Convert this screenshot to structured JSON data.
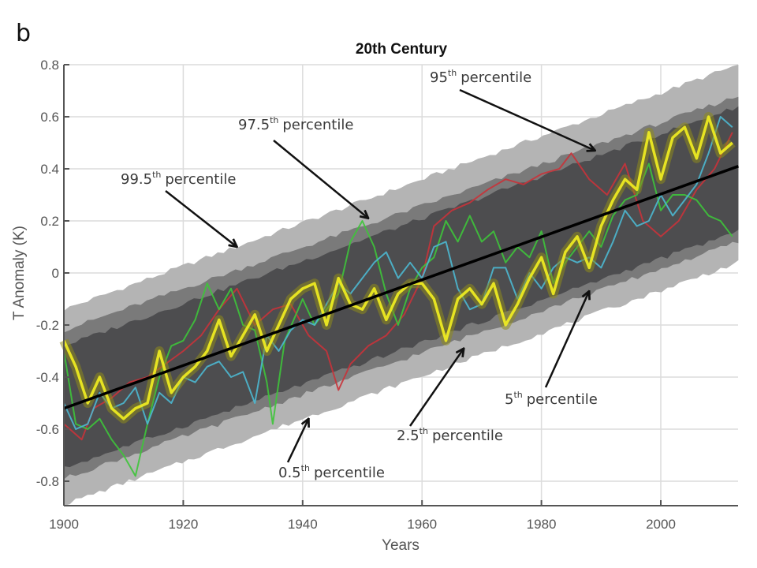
{
  "panel_label": "b",
  "chart_data": {
    "type": "area",
    "title": "20th Century",
    "xlabel": "Years",
    "ylabel": "T Anomaly (K)",
    "xlim": [
      1900,
      2013
    ],
    "ylim": [
      -0.9,
      0.8
    ],
    "grid": true,
    "xticks": [
      1900,
      1920,
      1940,
      1960,
      1980,
      2000
    ],
    "xtick_labels": [
      "1900",
      "1920",
      "1940",
      "1960",
      "1980",
      "2000"
    ],
    "yticks": [
      0.8,
      0.6,
      0.4,
      0.2,
      0,
      -0.2,
      -0.4,
      -0.6,
      -0.8
    ],
    "ytick_labels": [
      "0.8",
      "0.6",
      "0.4",
      "0.2",
      "0",
      "-0.2",
      "-0.4",
      "-0.6",
      "-0.8"
    ],
    "trend": {
      "name": "linear trend",
      "color": "#000000",
      "x": [
        1900,
        2013
      ],
      "y": [
        -0.52,
        0.41
      ]
    },
    "bands": [
      {
        "name": "0.5th-99.5th percentile",
        "color": "#b4b4b4",
        "x": [
          1900,
          2013
        ],
        "lower": [
          -0.89,
          0.04
        ],
        "upper": [
          -0.14,
          0.8
        ]
      },
      {
        "name": "2.5th-97.5th percentile",
        "color": "#7a7a7a",
        "x": [
          1900,
          2013
        ],
        "lower": [
          -0.79,
          0.12
        ],
        "upper": [
          -0.22,
          0.68
        ]
      },
      {
        "name": "5th-95th percentile",
        "color": "#4d4d4f",
        "x": [
          1900,
          2013
        ],
        "lower": [
          -0.75,
          0.16
        ],
        "upper": [
          -0.28,
          0.64
        ]
      }
    ],
    "series": [
      {
        "name": "red",
        "color": "#c8333a",
        "x": [
          1900,
          1903,
          1905,
          1908,
          1911,
          1914,
          1917,
          1920,
          1923,
          1926,
          1929,
          1932,
          1935,
          1938,
          1941,
          1944,
          1946,
          1948,
          1951,
          1954,
          1957,
          1960,
          1962,
          1965,
          1968,
          1971,
          1974,
          1977,
          1980,
          1983,
          1985,
          1988,
          1991,
          1994,
          1997,
          2000,
          2003,
          2006,
          2009,
          2012
        ],
        "y": [
          -0.58,
          -0.64,
          -0.52,
          -0.48,
          -0.42,
          -0.4,
          -0.35,
          -0.3,
          -0.24,
          -0.14,
          -0.06,
          -0.2,
          -0.14,
          -0.12,
          -0.24,
          -0.3,
          -0.45,
          -0.35,
          -0.28,
          -0.24,
          -0.16,
          -0.02,
          0.18,
          0.24,
          0.27,
          0.32,
          0.36,
          0.34,
          0.38,
          0.4,
          0.46,
          0.36,
          0.3,
          0.42,
          0.2,
          0.14,
          0.2,
          0.32,
          0.4,
          0.54
        ]
      },
      {
        "name": "green",
        "color": "#3ec43a",
        "x": [
          1900,
          1902,
          1904,
          1906,
          1908,
          1910,
          1912,
          1914,
          1916,
          1918,
          1920,
          1922,
          1924,
          1926,
          1928,
          1930,
          1932,
          1934,
          1935,
          1937,
          1940,
          1942,
          1944,
          1946,
          1948,
          1950,
          1952,
          1954,
          1956,
          1958,
          1960,
          1962,
          1964,
          1966,
          1968,
          1970,
          1972,
          1974,
          1976,
          1978,
          1980,
          1982,
          1984,
          1986,
          1988,
          1990,
          1992,
          1994,
          1996,
          1998,
          2000,
          2002,
          2004,
          2006,
          2008,
          2010,
          2012
        ],
        "y": [
          -0.3,
          -0.58,
          -0.6,
          -0.56,
          -0.64,
          -0.7,
          -0.78,
          -0.58,
          -0.4,
          -0.28,
          -0.26,
          -0.18,
          -0.04,
          -0.14,
          -0.06,
          -0.2,
          -0.22,
          -0.42,
          -0.58,
          -0.26,
          -0.1,
          -0.2,
          -0.14,
          -0.08,
          0.12,
          0.2,
          0.1,
          -0.08,
          -0.2,
          -0.06,
          0.02,
          0.06,
          0.2,
          0.12,
          0.22,
          0.12,
          0.16,
          0.04,
          0.1,
          0.06,
          0.16,
          -0.04,
          0.04,
          0.1,
          0.16,
          0.1,
          0.22,
          0.28,
          0.3,
          0.42,
          0.24,
          0.3,
          0.3,
          0.28,
          0.22,
          0.2,
          0.14
        ]
      },
      {
        "name": "cyan",
        "color": "#4cb8d0",
        "x": [
          1900,
          1902,
          1904,
          1906,
          1908,
          1910,
          1912,
          1914,
          1916,
          1918,
          1920,
          1922,
          1924,
          1926,
          1928,
          1930,
          1932,
          1934,
          1936,
          1938,
          1940,
          1942,
          1944,
          1946,
          1948,
          1950,
          1952,
          1954,
          1956,
          1958,
          1960,
          1962,
          1964,
          1966,
          1968,
          1970,
          1972,
          1974,
          1976,
          1978,
          1980,
          1982,
          1984,
          1986,
          1988,
          1990,
          1992,
          1994,
          1996,
          1998,
          2000,
          2002,
          2004,
          2006,
          2008,
          2010,
          2012
        ],
        "y": [
          -0.5,
          -0.6,
          -0.58,
          -0.46,
          -0.52,
          -0.5,
          -0.44,
          -0.58,
          -0.46,
          -0.5,
          -0.4,
          -0.42,
          -0.36,
          -0.34,
          -0.4,
          -0.38,
          -0.5,
          -0.24,
          -0.3,
          -0.22,
          -0.18,
          -0.2,
          -0.12,
          -0.04,
          -0.08,
          -0.02,
          0.04,
          0.08,
          -0.02,
          0.04,
          -0.02,
          0.1,
          0.12,
          -0.06,
          -0.14,
          -0.12,
          0.02,
          0.02,
          -0.1,
          0.0,
          -0.06,
          0.02,
          0.06,
          0.04,
          0.06,
          0.02,
          0.12,
          0.24,
          0.18,
          0.2,
          0.3,
          0.22,
          0.28,
          0.34,
          0.46,
          0.6,
          0.56
        ]
      },
      {
        "name": "yellow",
        "color": "#f3f020",
        "x": [
          1900,
          1902,
          1904,
          1906,
          1908,
          1910,
          1912,
          1914,
          1916,
          1918,
          1920,
          1922,
          1924,
          1926,
          1928,
          1930,
          1932,
          1934,
          1936,
          1938,
          1940,
          1942,
          1944,
          1946,
          1948,
          1950,
          1952,
          1954,
          1956,
          1958,
          1960,
          1962,
          1964,
          1966,
          1968,
          1970,
          1972,
          1974,
          1976,
          1978,
          1980,
          1982,
          1984,
          1986,
          1988,
          1990,
          1992,
          1994,
          1996,
          1998,
          2000,
          2002,
          2004,
          2006,
          2008,
          2010,
          2012
        ],
        "y": [
          -0.26,
          -0.36,
          -0.5,
          -0.4,
          -0.52,
          -0.56,
          -0.52,
          -0.5,
          -0.3,
          -0.46,
          -0.4,
          -0.36,
          -0.3,
          -0.18,
          -0.32,
          -0.24,
          -0.16,
          -0.3,
          -0.2,
          -0.1,
          -0.06,
          -0.04,
          -0.2,
          -0.02,
          -0.12,
          -0.14,
          -0.06,
          -0.18,
          -0.08,
          -0.04,
          -0.04,
          -0.1,
          -0.26,
          -0.1,
          -0.06,
          -0.12,
          -0.04,
          -0.2,
          -0.12,
          -0.02,
          0.06,
          -0.08,
          0.08,
          0.14,
          0.02,
          0.18,
          0.28,
          0.36,
          0.32,
          0.54,
          0.36,
          0.52,
          0.56,
          0.44,
          0.6,
          0.46,
          0.5
        ]
      }
    ],
    "annotations": [
      {
        "num": "99.5",
        "sup": "th",
        "text": "percentile",
        "points_to": [
          1929,
          0.1
        ]
      },
      {
        "num": "97.5",
        "sup": "th",
        "text": "percentile",
        "points_to": [
          1951,
          0.21
        ]
      },
      {
        "num": "95",
        "sup": "th",
        "text": "percentile",
        "points_to": [
          1989,
          0.47
        ]
      },
      {
        "num": "5",
        "sup": "th",
        "text": "percentile",
        "points_to": [
          1988,
          -0.07
        ]
      },
      {
        "num": "2.5",
        "sup": "th",
        "text": "percentile",
        "points_to": [
          1967,
          -0.29
        ]
      },
      {
        "num": "0.5",
        "sup": "th",
        "text": "percentile",
        "points_to": [
          1941,
          -0.56
        ]
      }
    ]
  }
}
